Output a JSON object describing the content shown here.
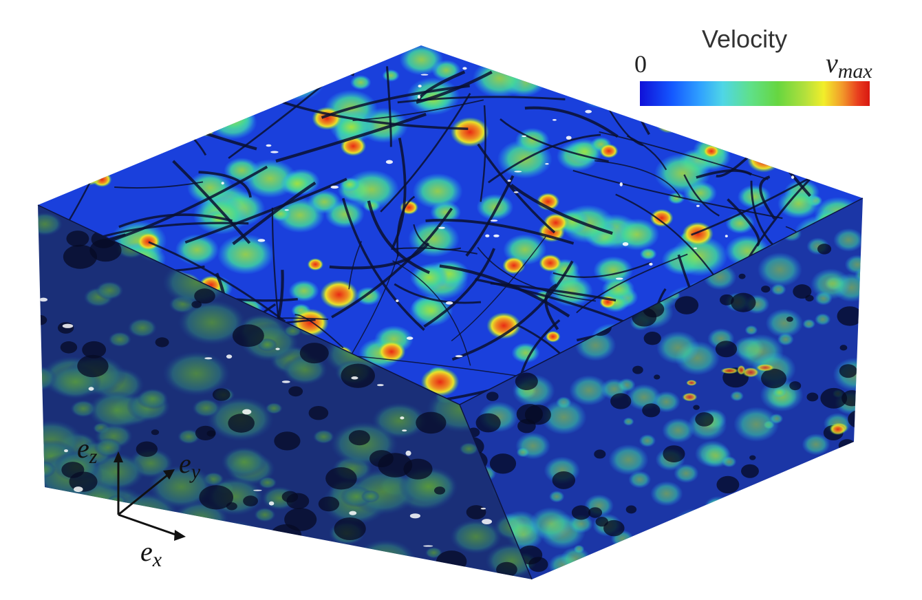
{
  "legend": {
    "title": "Velocity",
    "min_label": "0",
    "max_label_base": "v",
    "max_label_sub": "max",
    "colors": [
      "#1010d8",
      "#1458ff",
      "#2fa0ff",
      "#4fd6e6",
      "#5fe08a",
      "#66d640",
      "#b4e03c",
      "#f2ee2a",
      "#f29a2a",
      "#e83c1e",
      "#d81810"
    ]
  },
  "axes": {
    "z": {
      "base": "e",
      "sub": "z"
    },
    "y": {
      "base": "e",
      "sub": "y"
    },
    "x": {
      "base": "e",
      "sub": "x"
    }
  },
  "scene": {
    "object": "3D velocity field block with fiber network",
    "palette": {
      "top": "#1a3fd8",
      "left_face": "#18337a",
      "right_face": "#1c38a8",
      "fiber": "#0a0f2a"
    }
  }
}
